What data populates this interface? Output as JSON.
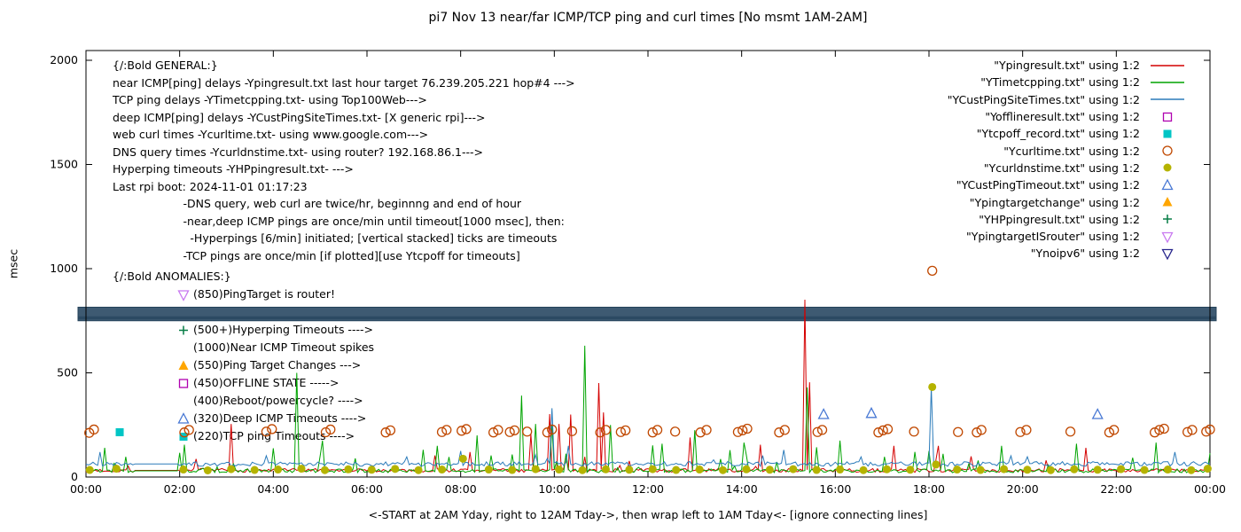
{
  "title": "pi7 Nov 13  near/far ICMP/TCP ping and curl times [No msmt 1AM-2AM]",
  "ylabel": "msec",
  "xlabel": "<-START at 2AM Yday, right to 12AM Tday->, then wrap left to 1AM Tday<- [ignore connecting lines]",
  "general": {
    "lines": [
      "{/:Bold GENERAL:}",
      "near ICMP[ping] delays -Ypingresult.txt last hour target 76.239.205.221 hop#4 --->",
      "TCP ping delays -YTimetcpping.txt- using Top100Web--->",
      "deep ICMP[ping] delays -YCustPingSiteTimes.txt- [X generic rpi]--->",
      "web curl times -Ycurltime.txt- using www.google.com--->",
      "DNS query times -Ycurldnstime.txt- using router? 192.168.86.1--->",
      "Hyperping timeouts -YHPpingresult.txt- --->",
      "Last rpi boot: 2024-11-01 01:17:23",
      "                    -DNS query, web curl are twice/hr, beginnng and end of hour",
      "                    -near,deep ICMP pings are once/min until timeout[1000 msec], then:",
      "                      -Hyperpings [6/min] initiated; [vertical stacked] ticks are timeouts",
      "                    -TCP pings are once/min [if plotted][use Ytcpoff for timeouts]"
    ]
  },
  "anomalies": {
    "header": "{/:Bold ANOMALIES:}",
    "items": [
      {
        "marker": "triangle-down-open",
        "color": "#c878f0",
        "text": "(850)PingTarget is router!"
      },
      {
        "marker": "triangle-down-open",
        "color": "#c878f0",
        "text": ""
      },
      {
        "marker": "plus",
        "color": "#077d46",
        "text": "(500+)Hyperping Timeouts ---->"
      },
      {
        "marker": "none",
        "color": "#000000",
        "text": "(1000)Near ICMP Timeout spikes"
      },
      {
        "marker": "triangle-filled",
        "color": "#ffa600",
        "text": "(550)Ping Target Changes --->"
      },
      {
        "marker": "square-open",
        "color": "#b000b0",
        "text": "(450)OFFLINE STATE ----->"
      },
      {
        "marker": "none",
        "color": "#000000",
        "text": "(400)Reboot/powercycle? ---->"
      },
      {
        "marker": "triangle-open",
        "color": "#4878d4",
        "text": "(320)Deep ICMP Timeouts ---->"
      },
      {
        "marker": "square-filled",
        "color": "#00c5c5",
        "text": "(220)TCP ping Timeouts ---->"
      }
    ]
  },
  "chart_data": {
    "type": "line",
    "title": "pi7 Nov 13  near/far ICMP/TCP ping and curl times [No msmt 1AM-2AM]",
    "xlabel": "<-START at 2AM Yday, right to 12AM Tday->, then wrap left to 1AM Tday<- [ignore connecting lines]",
    "ylabel": "msec",
    "xlim": [
      0,
      24
    ],
    "ylim": [
      0,
      2000
    ],
    "grid": false,
    "legend_position": "top-right",
    "no_measurement_gap_hours": [
      1,
      2
    ],
    "xticks": [
      {
        "t": 0,
        "label": "00:00"
      },
      {
        "t": 2,
        "label": "02:00"
      },
      {
        "t": 4,
        "label": "04:00"
      },
      {
        "t": 6,
        "label": "06:00"
      },
      {
        "t": 8,
        "label": "08:00"
      },
      {
        "t": 10,
        "label": "10:00"
      },
      {
        "t": 12,
        "label": "12:00"
      },
      {
        "t": 14,
        "label": "14:00"
      },
      {
        "t": 16,
        "label": "16:00"
      },
      {
        "t": 18,
        "label": "18:00"
      },
      {
        "t": 20,
        "label": "20:00"
      },
      {
        "t": 22,
        "label": "22:00"
      },
      {
        "t": 24,
        "label": "00:00"
      }
    ],
    "yticks": [
      {
        "v": 0,
        "label": "0"
      },
      {
        "v": 500,
        "label": "500"
      },
      {
        "v": 1000,
        "label": "1000"
      },
      {
        "v": 1500,
        "label": "1500"
      },
      {
        "v": 2000,
        "label": "2000"
      }
    ],
    "band": {
      "from_msec": 750,
      "to_msec": 815,
      "color": "#3e5a72",
      "edge": "#24425a"
    },
    "series": [
      {
        "id": "Ypingresult",
        "label": "\"Ypingresult.txt\" using 1:2",
        "style": "line",
        "color": "#d40000",
        "base": 32,
        "noise": 9,
        "spike_chance": 0.04,
        "spike_max": 85,
        "seed": 7,
        "spikes": [
          [
            3.12,
            255
          ],
          [
            8.22,
            120
          ],
          [
            9.48,
            205
          ],
          [
            9.92,
            302
          ],
          [
            10.1,
            255
          ],
          [
            10.36,
            300
          ],
          [
            10.94,
            451
          ],
          [
            11.06,
            310
          ],
          [
            12.92,
            190
          ],
          [
            14.38,
            155
          ],
          [
            15.33,
            851
          ],
          [
            15.45,
            455
          ],
          [
            17.25,
            150
          ],
          [
            18.2,
            150
          ],
          [
            21.35,
            140
          ]
        ]
      },
      {
        "id": "YTimetcpping",
        "label": "\"YTimetcpping.txt\" using 1:2",
        "style": "line",
        "color": "#00a400",
        "base": 30,
        "noise": 9,
        "spike_chance": 0.09,
        "spike_max": 120,
        "seed": 13,
        "spikes": [
          [
            0.38,
            140
          ],
          [
            2.12,
            155
          ],
          [
            4.5,
            500
          ],
          [
            5.05,
            175
          ],
          [
            7.52,
            150
          ],
          [
            8.35,
            200
          ],
          [
            9.32,
            391
          ],
          [
            9.58,
            255
          ],
          [
            9.97,
            250
          ],
          [
            10.64,
            630
          ],
          [
            11.18,
            250
          ],
          [
            12.32,
            160
          ],
          [
            13.02,
            225
          ],
          [
            14.05,
            165
          ],
          [
            15.42,
            430
          ],
          [
            16.12,
            175
          ],
          [
            19.55,
            150
          ],
          [
            21.15,
            160
          ],
          [
            22.85,
            165
          ]
        ]
      },
      {
        "id": "YCustPingSiteTimes",
        "label": "\"YCustPingSiteTimes.txt\" using 1:2",
        "style": "line",
        "color": "#2b7bba",
        "base": 63,
        "noise": 11,
        "spike_chance": 0.05,
        "spike_max": 45,
        "seed": 21,
        "spikes": [
          [
            0.3,
            120
          ],
          [
            8.02,
            125
          ],
          [
            9.97,
            330
          ],
          [
            10.32,
            150
          ],
          [
            14.92,
            130
          ],
          [
            18.05,
            430
          ],
          [
            23.25,
            120
          ]
        ]
      },
      {
        "id": "Yofflineresult",
        "label": "\"Yofflineresult.txt\" using 1:2",
        "style": "square-open",
        "color": "#b000b0",
        "points": []
      },
      {
        "id": "Ytcpoff_record",
        "label": "\"Ytcpoff_record.txt\" using 1:2",
        "style": "square-filled",
        "color": "#00c5c5",
        "points": [
          [
            0.72,
            215
          ]
        ]
      },
      {
        "id": "Ycurltime",
        "label": "\"Ycurltime.txt\" using 1:2",
        "style": "circle-open",
        "color": "#c04800",
        "points": [
          [
            0.07,
            212
          ],
          [
            0.17,
            228
          ],
          [
            2.1,
            214
          ],
          [
            2.2,
            226
          ],
          [
            3.85,
            218
          ],
          [
            3.97,
            230
          ],
          [
            5.12,
            215
          ],
          [
            5.22,
            228
          ],
          [
            6.4,
            214
          ],
          [
            6.5,
            224
          ],
          [
            7.6,
            216
          ],
          [
            7.7,
            226
          ],
          [
            8.02,
            222
          ],
          [
            8.12,
            230
          ],
          [
            8.7,
            214
          ],
          [
            8.8,
            226
          ],
          [
            9.05,
            216
          ],
          [
            9.15,
            224
          ],
          [
            9.42,
            218
          ],
          [
            9.85,
            214
          ],
          [
            9.95,
            228
          ],
          [
            10.38,
            220
          ],
          [
            10.98,
            214
          ],
          [
            11.1,
            226
          ],
          [
            11.42,
            216
          ],
          [
            11.52,
            224
          ],
          [
            12.1,
            214
          ],
          [
            12.2,
            226
          ],
          [
            12.58,
            218
          ],
          [
            13.12,
            214
          ],
          [
            13.25,
            226
          ],
          [
            13.92,
            216
          ],
          [
            14.02,
            224
          ],
          [
            14.12,
            232
          ],
          [
            14.8,
            214
          ],
          [
            14.92,
            226
          ],
          [
            15.62,
            216
          ],
          [
            15.72,
            226
          ],
          [
            16.92,
            214
          ],
          [
            17.02,
            224
          ],
          [
            17.12,
            230
          ],
          [
            17.68,
            218
          ],
          [
            18.07,
            990
          ],
          [
            18.62,
            216
          ],
          [
            19.02,
            214
          ],
          [
            19.12,
            226
          ],
          [
            19.95,
            216
          ],
          [
            20.08,
            226
          ],
          [
            21.02,
            218
          ],
          [
            21.85,
            214
          ],
          [
            21.95,
            226
          ],
          [
            22.82,
            214
          ],
          [
            22.92,
            226
          ],
          [
            23.02,
            232
          ],
          [
            23.52,
            216
          ],
          [
            23.62,
            226
          ],
          [
            23.92,
            218
          ],
          [
            24.0,
            228
          ]
        ]
      },
      {
        "id": "Ycurldnstime",
        "label": "\"Ycurldnstime.txt\" using 1:2",
        "style": "circle-filled",
        "color": "#b5b300",
        "points": [
          [
            0.08,
            34
          ],
          [
            0.65,
            40
          ],
          [
            2.08,
            36
          ],
          [
            2.6,
            32
          ],
          [
            3.1,
            38
          ],
          [
            3.6,
            34
          ],
          [
            4.1,
            36
          ],
          [
            4.6,
            40
          ],
          [
            5.1,
            33
          ],
          [
            5.6,
            37
          ],
          [
            6.1,
            35
          ],
          [
            6.6,
            39
          ],
          [
            7.1,
            33
          ],
          [
            7.6,
            36
          ],
          [
            8.05,
            88
          ],
          [
            8.6,
            36
          ],
          [
            9.1,
            34
          ],
          [
            9.6,
            38
          ],
          [
            10.1,
            36
          ],
          [
            10.6,
            33
          ],
          [
            11.1,
            37
          ],
          [
            11.6,
            35
          ],
          [
            12.1,
            38
          ],
          [
            12.6,
            34
          ],
          [
            13.1,
            36
          ],
          [
            13.6,
            33
          ],
          [
            14.1,
            37
          ],
          [
            14.6,
            35
          ],
          [
            15.1,
            38
          ],
          [
            15.6,
            34
          ],
          [
            16.1,
            36
          ],
          [
            16.6,
            33
          ],
          [
            17.1,
            37
          ],
          [
            17.6,
            35
          ],
          [
            18.07,
            432
          ],
          [
            18.15,
            60
          ],
          [
            18.6,
            36
          ],
          [
            19.1,
            34
          ],
          [
            19.6,
            38
          ],
          [
            20.1,
            35
          ],
          [
            20.6,
            33
          ],
          [
            21.1,
            37
          ],
          [
            21.6,
            35
          ],
          [
            22.1,
            38
          ],
          [
            22.6,
            34
          ],
          [
            23.1,
            36
          ],
          [
            23.6,
            33
          ],
          [
            23.95,
            40
          ]
        ]
      },
      {
        "id": "YCustPingTimeout",
        "label": "\"YCustPingTimeout.txt\" using 1:2",
        "style": "triangle-open",
        "color": "#4878d4",
        "points": [
          [
            15.75,
            300
          ],
          [
            16.77,
            305
          ],
          [
            21.6,
            300
          ]
        ]
      },
      {
        "id": "Ypingtargetchange",
        "label": "\"Ypingtargetchange\" using 1:2",
        "style": "triangle-filled",
        "color": "#ffa600",
        "points": []
      },
      {
        "id": "YHPpingresult",
        "label": "\"YHPpingresult.txt\" using 1:2",
        "style": "plus",
        "color": "#077d46",
        "points": []
      },
      {
        "id": "YpingtargetISrouter",
        "label": "\"YpingtargetISrouter\" using 1:2",
        "style": "triangle-down-open",
        "color": "#c878f0",
        "points": []
      },
      {
        "id": "Ynoipv6",
        "label": "\"Ynoipv6\" using 1:2",
        "style": "triangle-down-open",
        "color": "#26248c",
        "points": []
      }
    ]
  }
}
